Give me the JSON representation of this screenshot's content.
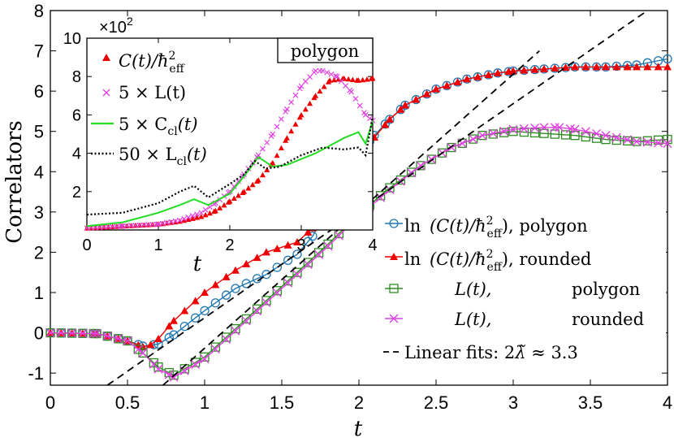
{
  "chart_data": [
    {
      "type": "line",
      "name": "main",
      "xlabel": "t",
      "ylabel": "Correlators",
      "xlim": [
        0,
        4
      ],
      "ylim": [
        -1.3,
        8
      ],
      "xticks": [
        0,
        0.5,
        1,
        1.5,
        2,
        2.5,
        3,
        3.5,
        4
      ],
      "xtick_labels": [
        "0",
        "0.5",
        "1",
        "1.5",
        "2",
        "2.5",
        "3",
        "3.5",
        "4"
      ],
      "yticks": [
        -1,
        0,
        1,
        2,
        3,
        4,
        5,
        6,
        7,
        8
      ],
      "ytick_labels": [
        "-1",
        "0",
        "1",
        "2",
        "3",
        "4",
        "5",
        "6",
        "7",
        "8"
      ],
      "legend_placement": "bottom-right",
      "series": [
        {
          "name": "ln (C(t)/ħ²_eff), polygon",
          "legend_text": ", polygon",
          "color": "#1f77b4",
          "marker": "circle",
          "x": [
            0,
            0.3,
            0.5,
            0.6,
            0.7,
            0.8,
            1.0,
            1.2,
            1.4,
            1.6,
            1.7,
            1.8,
            1.9,
            2.0,
            2.1,
            2.2,
            2.3,
            2.5,
            2.7,
            2.9,
            3.0,
            3.2,
            3.4,
            3.6,
            3.8,
            4.0
          ],
          "y": [
            0,
            -0.02,
            -0.2,
            -0.33,
            -0.28,
            -0.05,
            0.55,
            1.1,
            1.45,
            1.95,
            2.4,
            3.1,
            3.8,
            4.4,
            4.9,
            5.3,
            5.65,
            6.05,
            6.3,
            6.45,
            6.5,
            6.55,
            6.6,
            6.6,
            6.65,
            6.8
          ]
        },
        {
          "name": "ln (C(t)/ħ²_eff), rounded",
          "legend_text": ", rounded",
          "color": "#ee0000",
          "marker": "triangle",
          "x": [
            0,
            0.3,
            0.5,
            0.6,
            0.65,
            0.7,
            0.8,
            1.0,
            1.2,
            1.4,
            1.6,
            1.7,
            1.8,
            1.9,
            2.0,
            2.1,
            2.2,
            2.3,
            2.5,
            2.7,
            2.9,
            3.0,
            3.2,
            3.4,
            3.6,
            3.8,
            4.0
          ],
          "y": [
            0,
            -0.02,
            -0.2,
            -0.35,
            -0.3,
            -0.15,
            0.3,
            1.0,
            1.55,
            2.0,
            2.25,
            2.6,
            3.2,
            3.8,
            4.4,
            4.85,
            5.3,
            5.65,
            6.05,
            6.3,
            6.45,
            6.5,
            6.55,
            6.6,
            6.6,
            6.6,
            6.6
          ]
        },
        {
          "name": "L(t), polygon",
          "legend_text": "polygon",
          "color": "#2e8b22",
          "marker": "square",
          "x": [
            0,
            0.3,
            0.5,
            0.6,
            0.7,
            0.8,
            1.0,
            1.2,
            1.4,
            1.6,
            1.8,
            2.0,
            2.2,
            2.4,
            2.6,
            2.8,
            3.0,
            3.2,
            3.4,
            3.6,
            3.8,
            4.0
          ],
          "y": [
            0,
            -0.02,
            -0.2,
            -0.5,
            -0.85,
            -1.05,
            -0.6,
            0.1,
            0.8,
            1.5,
            2.2,
            2.95,
            3.6,
            4.15,
            4.6,
            4.9,
            5.0,
            4.95,
            4.9,
            4.8,
            4.75,
            4.8
          ]
        },
        {
          "name": "L(t), rounded",
          "legend_text": "rounded",
          "color": "#e040e0",
          "marker": "x",
          "x": [
            0,
            0.3,
            0.5,
            0.6,
            0.7,
            0.8,
            1.0,
            1.2,
            1.4,
            1.6,
            1.8,
            2.0,
            2.2,
            2.4,
            2.6,
            2.8,
            3.0,
            3.2,
            3.3,
            3.4,
            3.6,
            3.8,
            4.0
          ],
          "y": [
            0,
            -0.02,
            -0.2,
            -0.5,
            -0.9,
            -1.1,
            -0.65,
            0.05,
            0.75,
            1.45,
            2.15,
            2.9,
            3.55,
            4.15,
            4.6,
            4.9,
            5.05,
            5.1,
            5.1,
            5.05,
            4.9,
            4.75,
            4.7
          ]
        },
        {
          "name": "Linear fit (upper)",
          "color": "#000000",
          "dashed": true,
          "x": [
            0.37,
            3.87
          ],
          "y": [
            -1.3,
            8.0
          ]
        },
        {
          "name": "Linear fit (lower)",
          "color": "#000000",
          "dashed": true,
          "x": [
            0.73,
            3.17
          ],
          "y": [
            -1.3,
            7.0
          ]
        }
      ],
      "legend": [
        {
          "func": "ln",
          "paren": "(C(t)/ħ",
          "sup": "2",
          "sub": "eff",
          "close": ")",
          "tail": ", polygon"
        },
        {
          "func": "ln",
          "paren": "(C(t)/ħ",
          "sup": "2",
          "sub": "eff",
          "close": ")",
          "tail": ", rounded"
        },
        {
          "func": "L(t),",
          "tail": "polygon"
        },
        {
          "func": "L(t),",
          "tail": "rounded"
        },
        {
          "text": "Linear fits: 2",
          "lambda": "λ̃",
          "approx": " ≈ 3.3"
        }
      ]
    },
    {
      "type": "line",
      "name": "inset",
      "title": "polygon",
      "scale_label": "×10",
      "scale_exp": "2",
      "xlabel": "t",
      "xlim": [
        0,
        4
      ],
      "ylim": [
        0,
        10
      ],
      "xticks": [
        0,
        1,
        2,
        3,
        4
      ],
      "xtick_labels": [
        "0",
        "1",
        "2",
        "3",
        "4"
      ],
      "yticks": [
        2,
        4,
        6,
        8,
        10
      ],
      "ytick_labels": [
        "2",
        "4",
        "6",
        "8",
        "10"
      ],
      "legend_placement": "top-left",
      "series": [
        {
          "name": "C(t)/ħ²_eff",
          "color": "#ee0000",
          "marker": "triangle",
          "x": [
            0,
            0.5,
            1.0,
            1.3,
            1.6,
            1.8,
            2.0,
            2.2,
            2.4,
            2.6,
            2.8,
            3.0,
            3.2,
            3.4,
            3.6,
            3.8,
            4.0
          ],
          "y": [
            0.1,
            0.2,
            0.3,
            0.45,
            0.7,
            1.0,
            1.5,
            2.0,
            2.6,
            3.5,
            4.8,
            6.0,
            7.0,
            7.8,
            7.9,
            7.8,
            7.9
          ]
        },
        {
          "name": "5 × L(t)",
          "color": "#e040e0",
          "marker": "x",
          "x": [
            0,
            0.5,
            1.0,
            1.3,
            1.6,
            1.8,
            2.0,
            2.2,
            2.4,
            2.6,
            2.8,
            3.0,
            3.2,
            3.3,
            3.5,
            3.7,
            3.9,
            4.0
          ],
          "y": [
            0.1,
            0.2,
            0.3,
            0.5,
            0.9,
            1.4,
            2.0,
            2.9,
            3.9,
            5.0,
            6.3,
            7.5,
            8.3,
            8.3,
            8.0,
            7.2,
            6.0,
            5.7
          ]
        },
        {
          "name": "5 × C_cl(t)",
          "color": "#22dd22",
          "x": [
            0,
            0.5,
            1.0,
            1.3,
            1.5,
            1.7,
            2.0,
            2.2,
            2.4,
            2.6,
            2.8,
            3.0,
            3.2,
            3.4,
            3.6,
            3.8,
            3.9,
            4.0
          ],
          "y": [
            0.2,
            0.4,
            0.9,
            1.3,
            1.6,
            1.3,
            1.9,
            2.8,
            3.8,
            3.3,
            3.4,
            3.7,
            4.0,
            4.4,
            4.8,
            5.1,
            4.5,
            5.7
          ]
        },
        {
          "name": "50 × L_cl(t)",
          "color": "#000000",
          "dotted": true,
          "x": [
            0,
            0.5,
            1.0,
            1.3,
            1.5,
            1.7,
            2.0,
            2.2,
            2.35,
            2.5,
            2.7,
            3.0,
            3.3,
            3.6,
            3.8,
            3.9,
            4.0
          ],
          "y": [
            0.8,
            0.9,
            1.4,
            2.0,
            2.3,
            1.7,
            2.4,
            2.9,
            3.6,
            3.2,
            3.3,
            3.9,
            4.3,
            4.2,
            4.3,
            3.9,
            5.9
          ]
        }
      ],
      "legend": [
        {
          "text": "C(t)/ħ",
          "sup": "2",
          "sub": "eff"
        },
        {
          "text": "5 × L(t)"
        },
        {
          "text": "5 × C",
          "sub": "cl",
          "tail": "(t)"
        },
        {
          "text": "50 × L",
          "sub": "cl",
          "tail": "(t)"
        }
      ]
    }
  ]
}
